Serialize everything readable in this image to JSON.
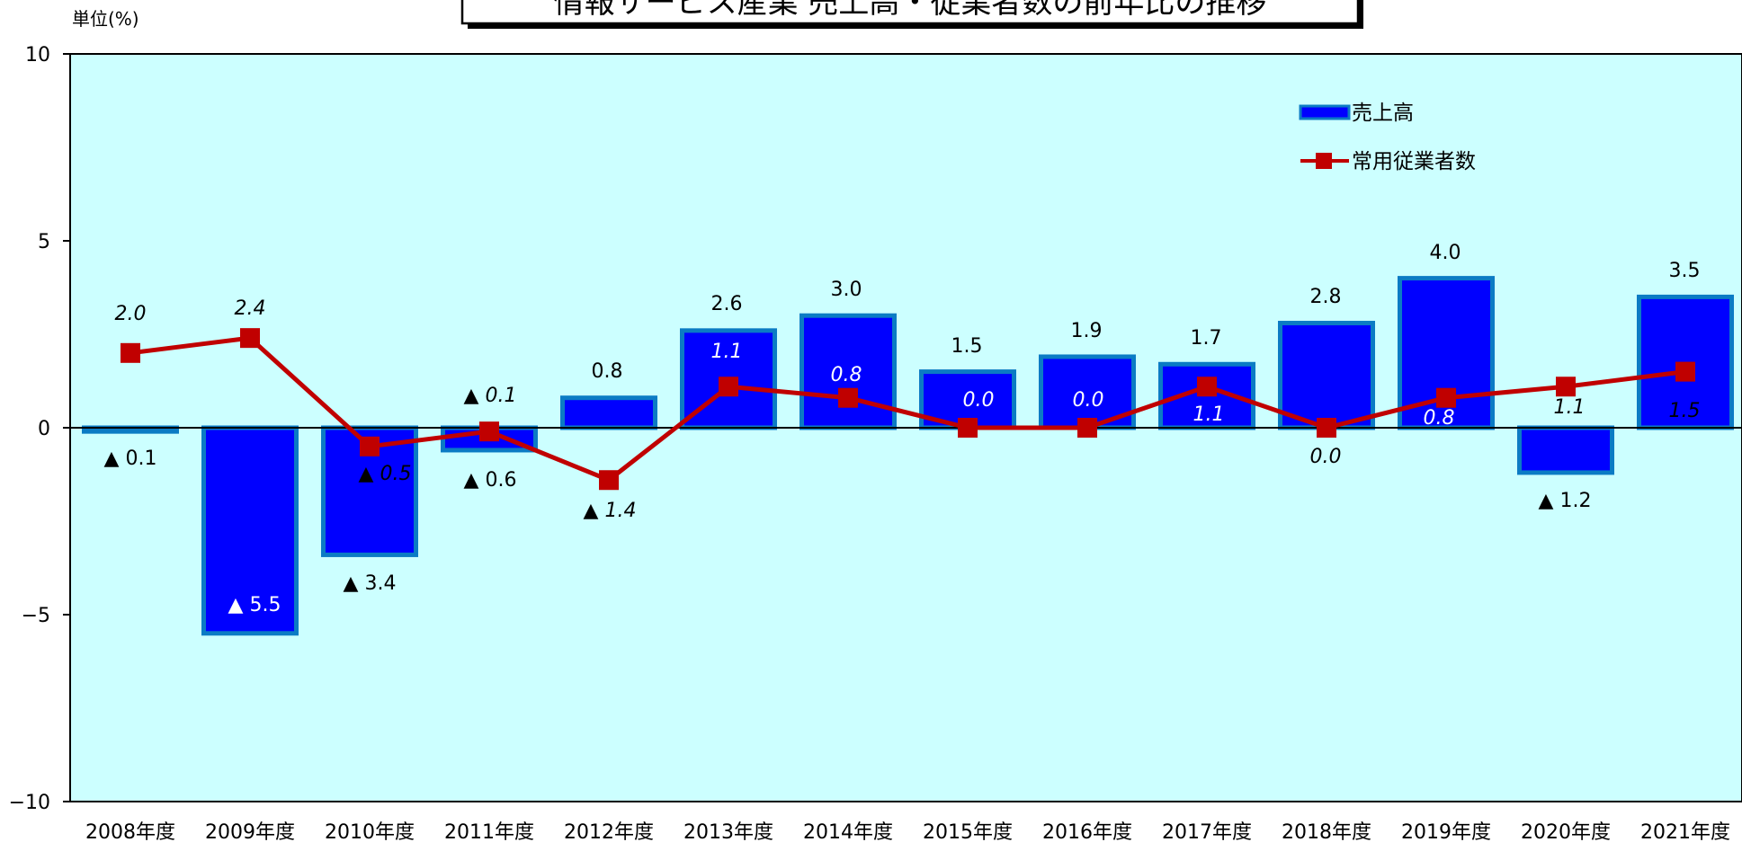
{
  "chart_data": {
    "type": "bar",
    "title": "情報サービス産業 売上高・従業者数の前年比の推移",
    "unit_label": "単位(%)",
    "categories": [
      "2008年度",
      "2009年度",
      "2010年度",
      "2011年度",
      "2012年度",
      "2013年度",
      "2014年度",
      "2015年度",
      "2016年度",
      "2017年度",
      "2018年度",
      "2019年度",
      "2020年度",
      "2021年度"
    ],
    "ylim": [
      -10,
      10
    ],
    "yticks": [
      10,
      5,
      0,
      -5,
      -10
    ],
    "ytick_labels": [
      "10",
      "5",
      "0",
      "−5",
      "−10"
    ],
    "grid": false,
    "legend_position": "top-right",
    "series": [
      {
        "name": "売上高",
        "type": "bar",
        "color": "#0000ff",
        "edge_color": "#0b7bc4",
        "values": [
          -0.1,
          -5.5,
          -3.4,
          -0.6,
          0.8,
          2.6,
          3.0,
          1.5,
          1.9,
          1.7,
          2.8,
          4.0,
          -1.2,
          3.5
        ],
        "labels": [
          "▲ 0.1",
          "▲ 5.5",
          "▲ 3.4",
          "▲ 0.6",
          "0.8",
          "2.6",
          "3.0",
          "1.5",
          "1.9",
          "1.7",
          "2.8",
          "4.0",
          "▲ 1.2",
          "3.5"
        ]
      },
      {
        "name": "常用従業者数",
        "type": "line",
        "color": "#c00000",
        "values": [
          2.0,
          2.4,
          -0.5,
          -0.1,
          -1.4,
          1.1,
          0.8,
          0.0,
          0.0,
          1.1,
          0.0,
          0.8,
          1.1,
          1.5
        ],
        "labels": [
          "2.0",
          "2.4",
          "▲ 0.5",
          "▲ 0.1",
          "▲ 1.4",
          "1.1",
          "0.8",
          "0.0",
          "0.0",
          "1.1",
          "0.0",
          "0.8",
          "1.1",
          "1.5"
        ]
      }
    ],
    "plot_background": "#ccffff"
  }
}
